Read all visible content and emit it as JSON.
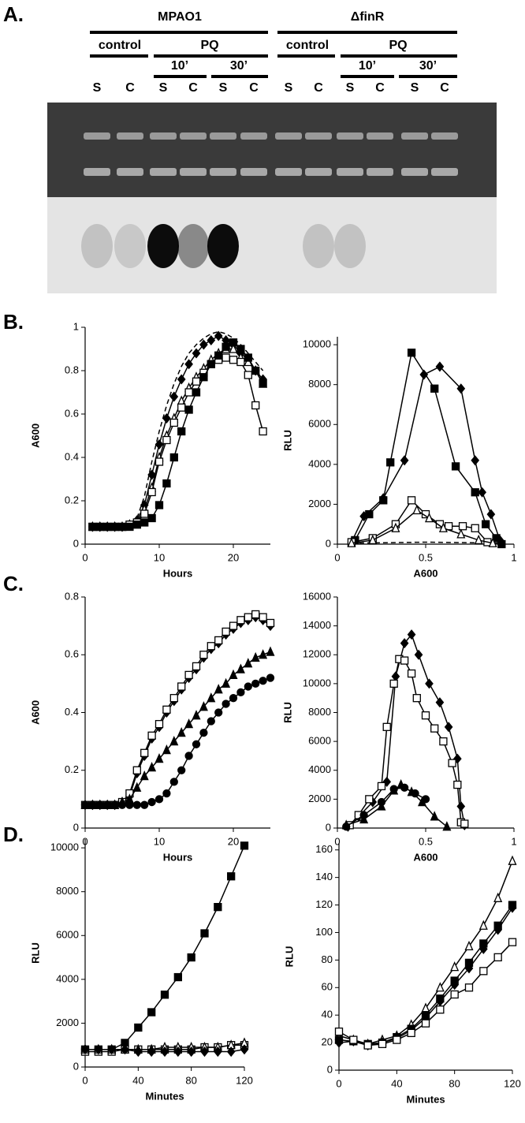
{
  "panel_a": {
    "label": "A.",
    "strains": [
      "MPAO1",
      "ΔfinR"
    ],
    "conditions": [
      "control",
      "PQ",
      "control",
      "PQ"
    ],
    "times": [
      "10’",
      "30’",
      "10’",
      "30’"
    ],
    "lanes": [
      "S",
      "C",
      "S",
      "C",
      "S",
      "C",
      "S",
      "C",
      "S",
      "C",
      "S",
      "C"
    ]
  },
  "panel_labels": [
    "B.",
    "C.",
    "D."
  ],
  "chart_data": [
    {
      "type": "line",
      "xlabel": "Hours",
      "ylabel": "A600",
      "xlim": [
        0,
        25
      ],
      "xticks": [
        0,
        10,
        20
      ],
      "ylim": [
        0,
        1
      ],
      "yticks": [
        0,
        0.2,
        0.4,
        0.6,
        0.8,
        1
      ],
      "x": [
        1,
        2,
        3,
        4,
        5,
        6,
        7,
        8,
        9,
        10,
        11,
        12,
        13,
        14,
        15,
        16,
        17,
        18,
        19,
        20,
        21,
        22,
        23,
        24
      ],
      "series": [
        {
          "color": "#000000",
          "marker": "none",
          "line_style": "dashed",
          "values": [
            0.08,
            0.08,
            0.08,
            0.08,
            0.08,
            0.09,
            0.12,
            0.22,
            0.38,
            0.52,
            0.64,
            0.74,
            0.82,
            0.88,
            0.92,
            0.95,
            0.97,
            0.98,
            0.97,
            0.95,
            0.92,
            0.88,
            0.84,
            0.8
          ]
        },
        {
          "color": "#000000",
          "marker": "diamond-filled",
          "values": [
            0.08,
            0.08,
            0.08,
            0.08,
            0.08,
            0.09,
            0.11,
            0.18,
            0.32,
            0.46,
            0.58,
            0.68,
            0.76,
            0.83,
            0.88,
            0.92,
            0.94,
            0.96,
            0.94,
            0.92,
            0.88,
            0.85,
            0.8,
            0.76
          ]
        },
        {
          "color": "#000000",
          "marker": "triangle-open",
          "values": [
            0.08,
            0.08,
            0.08,
            0.08,
            0.08,
            0.09,
            0.1,
            0.16,
            0.26,
            0.4,
            0.5,
            0.58,
            0.66,
            0.72,
            0.77,
            0.81,
            0.85,
            0.88,
            0.9,
            0.9,
            0.86,
            0.84,
            0.8,
            0.74
          ]
        },
        {
          "color": "#000000",
          "marker": "square-open",
          "values": [
            0.08,
            0.08,
            0.08,
            0.08,
            0.08,
            0.09,
            0.1,
            0.14,
            0.24,
            0.38,
            0.48,
            0.56,
            0.63,
            0.7,
            0.75,
            0.79,
            0.83,
            0.85,
            0.86,
            0.85,
            0.84,
            0.78,
            0.64,
            0.52
          ]
        },
        {
          "color": "#000000",
          "marker": "square-filled",
          "values": [
            0.08,
            0.08,
            0.08,
            0.08,
            0.08,
            0.08,
            0.09,
            0.1,
            0.12,
            0.18,
            0.28,
            0.4,
            0.52,
            0.62,
            0.7,
            0.77,
            0.83,
            0.87,
            0.91,
            0.93,
            0.9,
            0.86,
            0.8,
            0.74
          ]
        }
      ]
    },
    {
      "type": "line",
      "xlabel": "A600",
      "ylabel": "RLU",
      "xlim": [
        0,
        1
      ],
      "xticks": [
        0,
        0.5,
        1
      ],
      "ylim": [
        0,
        10400
      ],
      "yticks": [
        0,
        2000,
        4000,
        6000,
        8000,
        10000
      ],
      "series": [
        {
          "color": "#000000",
          "marker": "none",
          "line_style": "dashed",
          "x": [
            0.08,
            0.5,
            0.95
          ],
          "values": [
            50,
            100,
            50
          ]
        },
        {
          "color": "#000000",
          "marker": "square-filled",
          "x": [
            0.1,
            0.18,
            0.26,
            0.3,
            0.42,
            0.55,
            0.67,
            0.78,
            0.84,
            0.9,
            0.93
          ],
          "values": [
            200,
            1500,
            2200,
            4100,
            9600,
            7800,
            3900,
            2600,
            1000,
            300,
            0
          ]
        },
        {
          "color": "#000000",
          "marker": "diamond-filled",
          "x": [
            0.08,
            0.15,
            0.26,
            0.38,
            0.49,
            0.58,
            0.7,
            0.78,
            0.82,
            0.87,
            0.92
          ],
          "values": [
            100,
            1400,
            2300,
            4200,
            8500,
            8900,
            7800,
            4200,
            2600,
            1500,
            200
          ]
        },
        {
          "color": "#000000",
          "marker": "square-open",
          "x": [
            0.08,
            0.2,
            0.33,
            0.42,
            0.5,
            0.58,
            0.63,
            0.71,
            0.78,
            0.85
          ],
          "values": [
            100,
            300,
            1000,
            2200,
            1500,
            1000,
            900,
            900,
            800,
            100
          ]
        },
        {
          "color": "#000000",
          "marker": "triangle-open",
          "x": [
            0.08,
            0.2,
            0.33,
            0.45,
            0.52,
            0.6,
            0.7,
            0.8,
            0.88
          ],
          "values": [
            50,
            200,
            800,
            1700,
            1300,
            800,
            500,
            200,
            50
          ]
        }
      ]
    },
    {
      "type": "line",
      "xlabel": "Hours",
      "ylabel": "A600",
      "xlim": [
        0,
        25
      ],
      "xticks": [
        0,
        10,
        20
      ],
      "ylim": [
        0,
        0.8
      ],
      "yticks": [
        0,
        0.2,
        0.4,
        0.6,
        0.8
      ],
      "x": [
        0,
        1,
        2,
        3,
        4,
        5,
        6,
        7,
        8,
        9,
        10,
        11,
        12,
        13,
        14,
        15,
        16,
        17,
        18,
        19,
        20,
        21,
        22,
        23,
        24,
        25
      ],
      "series": [
        {
          "color": "#000000",
          "marker": "diamond-filled",
          "values": [
            0.08,
            0.08,
            0.08,
            0.08,
            0.08,
            0.09,
            0.11,
            0.19,
            0.25,
            0.31,
            0.35,
            0.4,
            0.44,
            0.48,
            0.52,
            0.55,
            0.59,
            0.62,
            0.64,
            0.67,
            0.69,
            0.71,
            0.72,
            0.73,
            0.72,
            0.7
          ]
        },
        {
          "color": "#000000",
          "marker": "square-open",
          "values": [
            0.08,
            0.08,
            0.08,
            0.08,
            0.08,
            0.09,
            0.12,
            0.2,
            0.26,
            0.32,
            0.36,
            0.41,
            0.45,
            0.49,
            0.53,
            0.56,
            0.6,
            0.63,
            0.65,
            0.68,
            0.7,
            0.72,
            0.73,
            0.74,
            0.73,
            0.71
          ]
        },
        {
          "color": "#000000",
          "marker": "triangle-filled",
          "values": [
            0.08,
            0.08,
            0.08,
            0.08,
            0.08,
            0.09,
            0.1,
            0.14,
            0.18,
            0.21,
            0.24,
            0.27,
            0.3,
            0.33,
            0.36,
            0.39,
            0.42,
            0.45,
            0.48,
            0.5,
            0.53,
            0.55,
            0.57,
            0.59,
            0.6,
            0.61
          ]
        },
        {
          "color": "#000000",
          "marker": "circle-filled",
          "values": [
            0.08,
            0.08,
            0.08,
            0.08,
            0.08,
            0.08,
            0.08,
            0.08,
            0.08,
            0.09,
            0.1,
            0.12,
            0.16,
            0.2,
            0.25,
            0.29,
            0.33,
            0.37,
            0.4,
            0.43,
            0.45,
            0.47,
            0.49,
            0.5,
            0.51,
            0.52
          ]
        }
      ]
    },
    {
      "type": "line",
      "xlabel": "A600",
      "ylabel": "RLU",
      "xlim": [
        0,
        1
      ],
      "xticks": [
        0,
        0.5,
        1
      ],
      "ylim": [
        0,
        16000
      ],
      "yticks": [
        0,
        2000,
        4000,
        6000,
        8000,
        10000,
        12000,
        14000,
        16000
      ],
      "series": [
        {
          "color": "#000000",
          "marker": "diamond-filled",
          "x": [
            0.06,
            0.12,
            0.2,
            0.28,
            0.33,
            0.38,
            0.42,
            0.46,
            0.52,
            0.58,
            0.63,
            0.68,
            0.7,
            0.72
          ],
          "values": [
            100,
            800,
            1800,
            3200,
            10500,
            12800,
            13400,
            12000,
            10000,
            8700,
            7000,
            4800,
            1500,
            200
          ]
        },
        {
          "color": "#000000",
          "marker": "square-open",
          "x": [
            0.07,
            0.12,
            0.18,
            0.25,
            0.28,
            0.32,
            0.35,
            0.38,
            0.42,
            0.45,
            0.5,
            0.55,
            0.6,
            0.65,
            0.68,
            0.7,
            0.72
          ],
          "values": [
            200,
            900,
            2000,
            2900,
            7000,
            10000,
            11700,
            11600,
            10700,
            9000,
            7800,
            6900,
            6000,
            4500,
            3000,
            400,
            300
          ]
        },
        {
          "color": "#000000",
          "marker": "triangle-filled",
          "x": [
            0.05,
            0.15,
            0.25,
            0.32,
            0.36,
            0.42,
            0.48,
            0.55,
            0.62
          ],
          "values": [
            200,
            600,
            1500,
            2600,
            3000,
            2500,
            1800,
            800,
            100
          ]
        },
        {
          "color": "#000000",
          "marker": "circle-filled",
          "x": [
            0.05,
            0.15,
            0.25,
            0.32,
            0.38,
            0.44,
            0.5
          ],
          "values": [
            100,
            900,
            1800,
            2700,
            2800,
            2400,
            2000
          ]
        }
      ]
    },
    {
      "type": "line",
      "xlabel": "Minutes",
      "ylabel": "RLU",
      "xlim": [
        0,
        120
      ],
      "xticks": [
        0,
        40,
        80,
        120
      ],
      "ylim": [
        0,
        10400
      ],
      "yticks": [
        0,
        2000,
        4000,
        6000,
        8000,
        10000
      ],
      "x": [
        0,
        10,
        20,
        30,
        40,
        50,
        60,
        70,
        80,
        90,
        100,
        110,
        120
      ],
      "series": [
        {
          "color": "#000000",
          "marker": "square-filled",
          "values": [
            800,
            800,
            800,
            1100,
            1800,
            2500,
            3300,
            4100,
            5000,
            6100,
            7300,
            8700,
            10100
          ]
        },
        {
          "color": "#000000",
          "marker": "square-open",
          "values": [
            700,
            700,
            700,
            800,
            800,
            800,
            800,
            800,
            800,
            900,
            900,
            1000,
            1000
          ]
        },
        {
          "color": "#000000",
          "marker": "triangle-open",
          "values": [
            800,
            800,
            800,
            800,
            800,
            800,
            900,
            900,
            900,
            900,
            900,
            1000,
            1100
          ]
        },
        {
          "color": "#000000",
          "marker": "diamond-filled",
          "values": [
            800,
            800,
            800,
            800,
            700,
            700,
            700,
            700,
            700,
            700,
            700,
            700,
            800
          ]
        }
      ]
    },
    {
      "type": "line",
      "xlabel": "Minutes",
      "ylabel": "RLU",
      "xlim": [
        0,
        120
      ],
      "xticks": [
        0,
        40,
        80,
        120
      ],
      "ylim": [
        0,
        165
      ],
      "yticks": [
        0,
        20,
        40,
        60,
        80,
        100,
        120,
        140,
        160
      ],
      "x": [
        0,
        10,
        20,
        30,
        40,
        50,
        60,
        70,
        80,
        90,
        100,
        110,
        120
      ],
      "series": [
        {
          "color": "#000000",
          "marker": "triangle-open",
          "values": [
            25,
            22,
            19,
            22,
            25,
            33,
            45,
            60,
            75,
            90,
            105,
            125,
            152
          ]
        },
        {
          "color": "#000000",
          "marker": "square-filled",
          "values": [
            22,
            21,
            19,
            20,
            24,
            30,
            40,
            52,
            65,
            78,
            92,
            105,
            120
          ]
        },
        {
          "color": "#000000",
          "marker": "diamond-filled",
          "values": [
            20,
            21,
            18,
            20,
            23,
            29,
            38,
            50,
            62,
            74,
            88,
            102,
            118
          ]
        },
        {
          "color": "#000000",
          "marker": "square-open",
          "values": [
            28,
            22,
            18,
            19,
            22,
            27,
            34,
            44,
            55,
            60,
            72,
            82,
            93
          ]
        }
      ]
    }
  ]
}
